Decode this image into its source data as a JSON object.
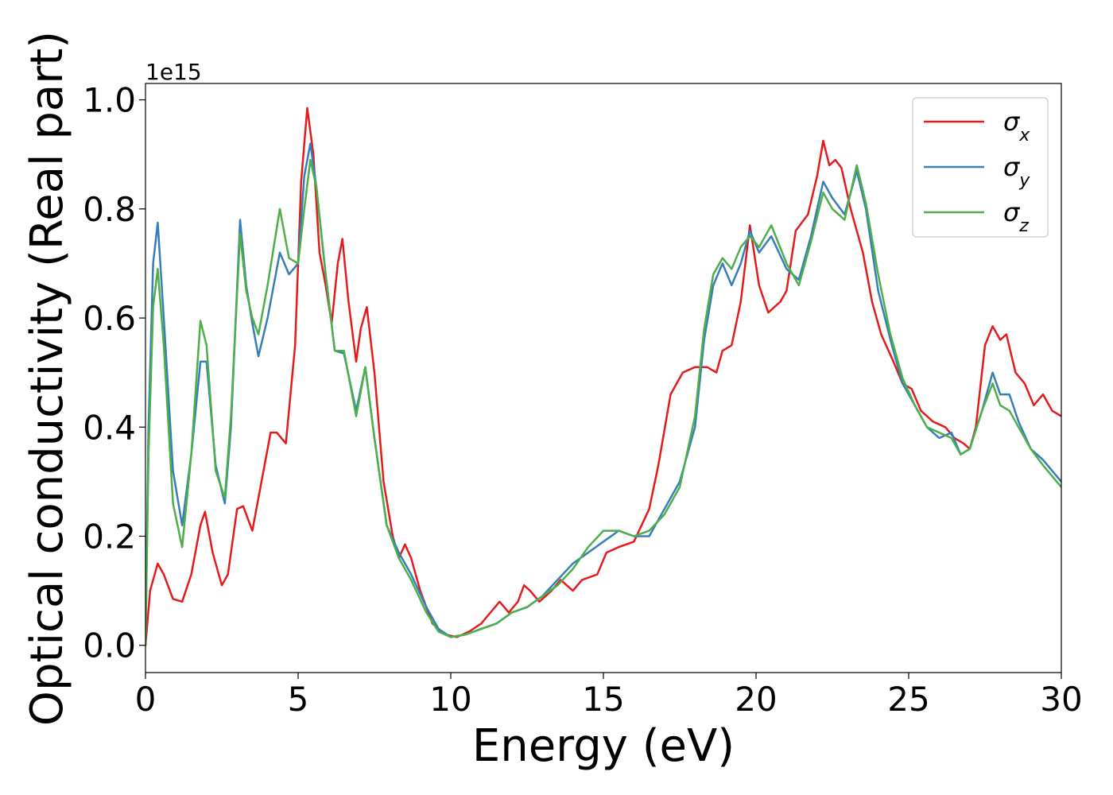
{
  "chart_data": {
    "type": "line",
    "title": "",
    "xlabel": "Energy (eV)",
    "ylabel": "Optical conductivity (Real part)",
    "y_offset_label": "1e15",
    "xlim": [
      0,
      30
    ],
    "ylim": [
      -0.05,
      1.03
    ],
    "x_ticks": [
      0,
      5,
      10,
      15,
      20,
      25,
      30
    ],
    "x_tick_labels": [
      "0",
      "5",
      "10",
      "15",
      "20",
      "25",
      "30"
    ],
    "y_ticks": [
      0.0,
      0.2,
      0.4,
      0.6,
      0.8,
      1.0
    ],
    "y_tick_labels": [
      "0.0",
      "0.2",
      "0.4",
      "0.6",
      "0.8",
      "1.0"
    ],
    "grid": false,
    "legend_position": "top-right",
    "series": [
      {
        "name": "σ_x",
        "label_base": "σ",
        "label_sub": "x",
        "color": "#e41a1c",
        "points": [
          [
            0,
            0
          ],
          [
            0.15,
            0.1
          ],
          [
            0.4,
            0.15
          ],
          [
            0.6,
            0.13
          ],
          [
            0.9,
            0.085
          ],
          [
            1.2,
            0.08
          ],
          [
            1.5,
            0.13
          ],
          [
            1.8,
            0.22
          ],
          [
            1.95,
            0.245
          ],
          [
            2.2,
            0.17
          ],
          [
            2.5,
            0.11
          ],
          [
            2.7,
            0.13
          ],
          [
            3.0,
            0.25
          ],
          [
            3.2,
            0.255
          ],
          [
            3.5,
            0.21
          ],
          [
            3.8,
            0.3
          ],
          [
            4.1,
            0.39
          ],
          [
            4.3,
            0.39
          ],
          [
            4.6,
            0.37
          ],
          [
            4.9,
            0.55
          ],
          [
            5.1,
            0.85
          ],
          [
            5.3,
            0.985
          ],
          [
            5.5,
            0.9
          ],
          [
            5.7,
            0.72
          ],
          [
            5.9,
            0.66
          ],
          [
            6.1,
            0.59
          ],
          [
            6.3,
            0.7
          ],
          [
            6.45,
            0.745
          ],
          [
            6.65,
            0.63
          ],
          [
            6.9,
            0.52
          ],
          [
            7.05,
            0.58
          ],
          [
            7.25,
            0.62
          ],
          [
            7.5,
            0.5
          ],
          [
            7.8,
            0.3
          ],
          [
            8.1,
            0.2
          ],
          [
            8.3,
            0.16
          ],
          [
            8.5,
            0.185
          ],
          [
            8.7,
            0.16
          ],
          [
            9.0,
            0.1
          ],
          [
            9.4,
            0.04
          ],
          [
            9.8,
            0.02
          ],
          [
            10.2,
            0.015
          ],
          [
            10.6,
            0.025
          ],
          [
            11.0,
            0.04
          ],
          [
            11.3,
            0.06
          ],
          [
            11.6,
            0.08
          ],
          [
            11.9,
            0.06
          ],
          [
            12.2,
            0.08
          ],
          [
            12.4,
            0.11
          ],
          [
            12.6,
            0.1
          ],
          [
            12.9,
            0.08
          ],
          [
            13.3,
            0.1
          ],
          [
            13.6,
            0.12
          ],
          [
            14.0,
            0.1
          ],
          [
            14.3,
            0.12
          ],
          [
            14.8,
            0.13
          ],
          [
            15.1,
            0.17
          ],
          [
            15.5,
            0.18
          ],
          [
            16.0,
            0.19
          ],
          [
            16.5,
            0.25
          ],
          [
            16.8,
            0.33
          ],
          [
            17.2,
            0.46
          ],
          [
            17.6,
            0.5
          ],
          [
            18.0,
            0.51
          ],
          [
            18.4,
            0.51
          ],
          [
            18.7,
            0.5
          ],
          [
            18.9,
            0.54
          ],
          [
            19.2,
            0.55
          ],
          [
            19.5,
            0.63
          ],
          [
            19.8,
            0.77
          ],
          [
            20.1,
            0.66
          ],
          [
            20.4,
            0.61
          ],
          [
            20.8,
            0.63
          ],
          [
            21.0,
            0.65
          ],
          [
            21.3,
            0.76
          ],
          [
            21.7,
            0.79
          ],
          [
            22.0,
            0.86
          ],
          [
            22.2,
            0.925
          ],
          [
            22.4,
            0.88
          ],
          [
            22.6,
            0.89
          ],
          [
            22.8,
            0.875
          ],
          [
            23.1,
            0.8
          ],
          [
            23.5,
            0.72
          ],
          [
            23.8,
            0.63
          ],
          [
            24.1,
            0.57
          ],
          [
            24.5,
            0.52
          ],
          [
            24.8,
            0.48
          ],
          [
            25.1,
            0.47
          ],
          [
            25.4,
            0.43
          ],
          [
            25.8,
            0.41
          ],
          [
            26.2,
            0.4
          ],
          [
            26.5,
            0.38
          ],
          [
            26.8,
            0.37
          ],
          [
            27.0,
            0.36
          ],
          [
            27.2,
            0.4
          ],
          [
            27.5,
            0.55
          ],
          [
            27.75,
            0.585
          ],
          [
            28.0,
            0.56
          ],
          [
            28.2,
            0.57
          ],
          [
            28.5,
            0.5
          ],
          [
            28.8,
            0.48
          ],
          [
            29.1,
            0.44
          ],
          [
            29.4,
            0.46
          ],
          [
            29.7,
            0.43
          ],
          [
            30.0,
            0.42
          ]
        ]
      },
      {
        "name": "σ_y",
        "label_base": "σ",
        "label_sub": "y",
        "color": "#377eb8",
        "points": [
          [
            0,
            0
          ],
          [
            0.1,
            0.4
          ],
          [
            0.25,
            0.7
          ],
          [
            0.4,
            0.775
          ],
          [
            0.6,
            0.6
          ],
          [
            0.9,
            0.32
          ],
          [
            1.2,
            0.22
          ],
          [
            1.5,
            0.35
          ],
          [
            1.8,
            0.52
          ],
          [
            2.0,
            0.52
          ],
          [
            2.3,
            0.33
          ],
          [
            2.6,
            0.26
          ],
          [
            2.8,
            0.4
          ],
          [
            3.1,
            0.78
          ],
          [
            3.3,
            0.66
          ],
          [
            3.5,
            0.59
          ],
          [
            3.7,
            0.53
          ],
          [
            4.0,
            0.6
          ],
          [
            4.4,
            0.72
          ],
          [
            4.7,
            0.68
          ],
          [
            5.0,
            0.7
          ],
          [
            5.2,
            0.86
          ],
          [
            5.4,
            0.92
          ],
          [
            5.6,
            0.84
          ],
          [
            5.9,
            0.68
          ],
          [
            6.2,
            0.54
          ],
          [
            6.5,
            0.535
          ],
          [
            6.9,
            0.43
          ],
          [
            7.2,
            0.51
          ],
          [
            7.5,
            0.38
          ],
          [
            7.9,
            0.22
          ],
          [
            8.3,
            0.17
          ],
          [
            8.7,
            0.13
          ],
          [
            9.2,
            0.07
          ],
          [
            9.6,
            0.03
          ],
          [
            10.0,
            0.015
          ],
          [
            10.5,
            0.02
          ],
          [
            11.0,
            0.03
          ],
          [
            11.5,
            0.04
          ],
          [
            12.0,
            0.06
          ],
          [
            12.5,
            0.07
          ],
          [
            13.0,
            0.09
          ],
          [
            13.5,
            0.12
          ],
          [
            14.0,
            0.15
          ],
          [
            14.5,
            0.17
          ],
          [
            15.0,
            0.19
          ],
          [
            15.5,
            0.21
          ],
          [
            16.0,
            0.2
          ],
          [
            16.5,
            0.2
          ],
          [
            17.0,
            0.25
          ],
          [
            17.5,
            0.3
          ],
          [
            18.0,
            0.4
          ],
          [
            18.3,
            0.56
          ],
          [
            18.6,
            0.66
          ],
          [
            18.9,
            0.7
          ],
          [
            19.2,
            0.66
          ],
          [
            19.5,
            0.7
          ],
          [
            19.8,
            0.76
          ],
          [
            20.1,
            0.72
          ],
          [
            20.5,
            0.75
          ],
          [
            21.0,
            0.69
          ],
          [
            21.4,
            0.67
          ],
          [
            21.8,
            0.75
          ],
          [
            22.2,
            0.85
          ],
          [
            22.5,
            0.82
          ],
          [
            22.9,
            0.79
          ],
          [
            23.3,
            0.87
          ],
          [
            23.6,
            0.8
          ],
          [
            24.0,
            0.65
          ],
          [
            24.4,
            0.56
          ],
          [
            24.8,
            0.48
          ],
          [
            25.2,
            0.44
          ],
          [
            25.6,
            0.4
          ],
          [
            26.0,
            0.38
          ],
          [
            26.4,
            0.39
          ],
          [
            26.7,
            0.35
          ],
          [
            27.0,
            0.36
          ],
          [
            27.4,
            0.43
          ],
          [
            27.75,
            0.5
          ],
          [
            28.0,
            0.46
          ],
          [
            28.3,
            0.46
          ],
          [
            28.6,
            0.41
          ],
          [
            29.0,
            0.36
          ],
          [
            29.4,
            0.34
          ],
          [
            30.0,
            0.3
          ]
        ]
      },
      {
        "name": "σ_z",
        "label_base": "σ",
        "label_sub": "z",
        "color": "#4daf4a",
        "points": [
          [
            0,
            0
          ],
          [
            0.1,
            0.35
          ],
          [
            0.25,
            0.62
          ],
          [
            0.4,
            0.69
          ],
          [
            0.6,
            0.55
          ],
          [
            0.9,
            0.26
          ],
          [
            1.2,
            0.18
          ],
          [
            1.5,
            0.35
          ],
          [
            1.8,
            0.595
          ],
          [
            2.0,
            0.55
          ],
          [
            2.3,
            0.32
          ],
          [
            2.6,
            0.27
          ],
          [
            2.8,
            0.42
          ],
          [
            3.1,
            0.755
          ],
          [
            3.3,
            0.65
          ],
          [
            3.5,
            0.6
          ],
          [
            3.7,
            0.57
          ],
          [
            4.0,
            0.66
          ],
          [
            4.4,
            0.8
          ],
          [
            4.7,
            0.71
          ],
          [
            5.0,
            0.7
          ],
          [
            5.2,
            0.8
          ],
          [
            5.4,
            0.89
          ],
          [
            5.6,
            0.84
          ],
          [
            5.9,
            0.68
          ],
          [
            6.2,
            0.54
          ],
          [
            6.5,
            0.54
          ],
          [
            6.9,
            0.42
          ],
          [
            7.2,
            0.51
          ],
          [
            7.5,
            0.38
          ],
          [
            7.9,
            0.22
          ],
          [
            8.3,
            0.16
          ],
          [
            8.7,
            0.12
          ],
          [
            9.2,
            0.06
          ],
          [
            9.6,
            0.025
          ],
          [
            10.0,
            0.015
          ],
          [
            10.5,
            0.02
          ],
          [
            11.0,
            0.03
          ],
          [
            11.5,
            0.04
          ],
          [
            12.0,
            0.06
          ],
          [
            12.5,
            0.07
          ],
          [
            13.0,
            0.09
          ],
          [
            13.5,
            0.11
          ],
          [
            14.0,
            0.14
          ],
          [
            14.5,
            0.18
          ],
          [
            15.0,
            0.21
          ],
          [
            15.5,
            0.21
          ],
          [
            16.0,
            0.2
          ],
          [
            16.5,
            0.21
          ],
          [
            17.0,
            0.24
          ],
          [
            17.5,
            0.29
          ],
          [
            18.0,
            0.42
          ],
          [
            18.3,
            0.58
          ],
          [
            18.6,
            0.68
          ],
          [
            18.9,
            0.71
          ],
          [
            19.2,
            0.69
          ],
          [
            19.5,
            0.73
          ],
          [
            19.8,
            0.75
          ],
          [
            20.1,
            0.73
          ],
          [
            20.5,
            0.77
          ],
          [
            21.0,
            0.7
          ],
          [
            21.4,
            0.66
          ],
          [
            21.8,
            0.74
          ],
          [
            22.2,
            0.83
          ],
          [
            22.5,
            0.8
          ],
          [
            22.9,
            0.78
          ],
          [
            23.3,
            0.88
          ],
          [
            23.6,
            0.81
          ],
          [
            24.0,
            0.68
          ],
          [
            24.4,
            0.57
          ],
          [
            24.8,
            0.49
          ],
          [
            25.2,
            0.44
          ],
          [
            25.6,
            0.4
          ],
          [
            26.0,
            0.39
          ],
          [
            26.4,
            0.38
          ],
          [
            26.7,
            0.35
          ],
          [
            27.0,
            0.36
          ],
          [
            27.4,
            0.43
          ],
          [
            27.75,
            0.48
          ],
          [
            28.0,
            0.44
          ],
          [
            28.3,
            0.43
          ],
          [
            28.6,
            0.4
          ],
          [
            29.0,
            0.36
          ],
          [
            29.4,
            0.33
          ],
          [
            30.0,
            0.29
          ]
        ]
      }
    ]
  }
}
